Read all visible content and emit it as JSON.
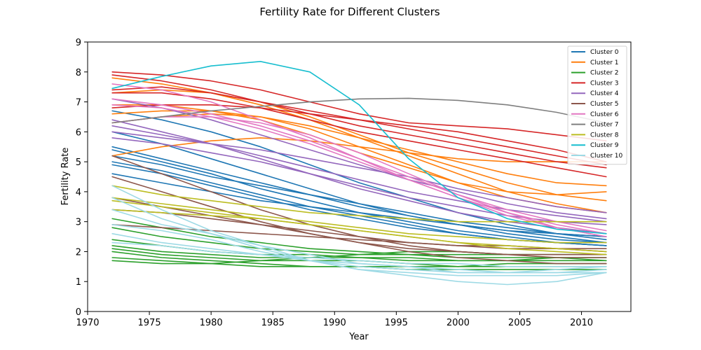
{
  "chart_data": {
    "type": "line",
    "title": "Fertility Rate for Different Clusters",
    "xlabel": "Year",
    "ylabel": "Fertility Rate",
    "xlim": [
      1970,
      2014
    ],
    "ylim": [
      0,
      9
    ],
    "xticks": [
      1970,
      1975,
      1980,
      1985,
      1990,
      1995,
      2000,
      2005,
      2010
    ],
    "yticks": [
      0,
      1,
      2,
      3,
      4,
      5,
      6,
      7,
      8,
      9
    ],
    "grid": false,
    "legend_position": "top-right",
    "x": [
      1972,
      1976,
      1980,
      1984,
      1988,
      1992,
      1996,
      2000,
      2004,
      2008,
      2012
    ],
    "series": [
      {
        "name": "Cluster 0",
        "color": "#1f77b4",
        "lines": [
          [
            6.7,
            6.4,
            6.0,
            5.5,
            4.9,
            4.3,
            3.8,
            3.3,
            2.9,
            2.6,
            2.4
          ],
          [
            5.5,
            5.1,
            4.7,
            4.3,
            3.9,
            3.5,
            3.2,
            2.9,
            2.7,
            2.5,
            2.3
          ],
          [
            5.2,
            4.9,
            4.5,
            4.2,
            3.9,
            3.6,
            3.3,
            3.0,
            2.8,
            2.6,
            2.5
          ],
          [
            4.6,
            4.3,
            4.0,
            3.7,
            3.5,
            3.3,
            3.1,
            2.9,
            2.7,
            2.6,
            2.5
          ],
          [
            5.4,
            5.0,
            4.6,
            4.1,
            3.7,
            3.3,
            3.0,
            2.7,
            2.5,
            2.3,
            2.2
          ],
          [
            5.0,
            4.7,
            4.3,
            3.9,
            3.5,
            3.2,
            2.9,
            2.6,
            2.4,
            2.3,
            2.2
          ],
          [
            6.0,
            5.6,
            5.1,
            4.6,
            4.1,
            3.6,
            3.2,
            2.9,
            2.6,
            2.4,
            2.3
          ],
          [
            4.9,
            4.6,
            4.2,
            3.8,
            3.4,
            3.1,
            2.8,
            2.6,
            2.4,
            2.3,
            2.2
          ]
        ]
      },
      {
        "name": "Cluster 1",
        "color": "#ff7f0e",
        "lines": [
          [
            7.8,
            7.6,
            7.3,
            6.9,
            6.4,
            5.8,
            5.2,
            4.6,
            4.0,
            3.6,
            3.3
          ],
          [
            7.3,
            7.4,
            7.3,
            7.0,
            6.5,
            5.9,
            5.3,
            4.8,
            4.3,
            3.9,
            3.7
          ],
          [
            6.3,
            6.5,
            6.6,
            6.5,
            6.2,
            5.8,
            5.4,
            5.0,
            4.6,
            4.3,
            4.2
          ],
          [
            5.2,
            5.5,
            5.7,
            5.8,
            5.7,
            5.5,
            5.3,
            5.1,
            5.0,
            5.0,
            5.0
          ],
          [
            6.9,
            6.9,
            6.7,
            6.4,
            5.9,
            5.3,
            4.8,
            4.3,
            4.0,
            3.9,
            4.0
          ],
          [
            6.6,
            6.7,
            6.7,
            6.5,
            6.1,
            5.5,
            4.9,
            4.3,
            3.8,
            3.5,
            3.3
          ]
        ]
      },
      {
        "name": "Cluster 2",
        "color": "#2ca02c",
        "lines": [
          [
            2.1,
            1.9,
            1.8,
            1.7,
            1.7,
            1.7,
            1.6,
            1.5,
            1.5,
            1.5,
            1.5
          ],
          [
            1.7,
            1.6,
            1.6,
            1.7,
            1.8,
            1.9,
            2.0,
            2.0,
            1.9,
            1.9,
            1.9
          ],
          [
            2.4,
            2.2,
            2.0,
            1.9,
            1.9,
            1.8,
            1.8,
            1.7,
            1.7,
            1.7,
            1.7
          ],
          [
            2.0,
            1.8,
            1.7,
            1.6,
            1.5,
            1.5,
            1.4,
            1.4,
            1.4,
            1.4,
            1.4
          ],
          [
            3.1,
            2.8,
            2.5,
            2.3,
            2.1,
            2.0,
            1.9,
            1.9,
            1.9,
            1.9,
            1.9
          ],
          [
            1.8,
            1.7,
            1.6,
            1.5,
            1.5,
            1.5,
            1.5,
            1.5,
            1.6,
            1.6,
            1.6
          ],
          [
            2.2,
            2.0,
            1.9,
            1.8,
            1.8,
            1.8,
            1.7,
            1.7,
            1.7,
            1.8,
            1.8
          ],
          [
            2.8,
            2.5,
            2.3,
            2.1,
            2.0,
            1.9,
            1.9,
            1.8,
            1.8,
            1.8,
            1.7
          ]
        ]
      },
      {
        "name": "Cluster 3",
        "color": "#d62728",
        "lines": [
          [
            8.0,
            7.9,
            7.7,
            7.4,
            7.0,
            6.6,
            6.3,
            6.2,
            6.1,
            5.9,
            5.7
          ],
          [
            7.4,
            7.5,
            7.3,
            7.0,
            6.6,
            6.2,
            5.9,
            5.6,
            5.3,
            5.0,
            4.8
          ],
          [
            6.8,
            6.9,
            6.9,
            6.8,
            6.6,
            6.4,
            6.2,
            6.0,
            5.7,
            5.4,
            5.0
          ],
          [
            7.9,
            7.7,
            7.4,
            7.0,
            6.7,
            6.4,
            6.1,
            5.8,
            5.5,
            5.2,
            4.9
          ],
          [
            7.3,
            7.3,
            7.1,
            6.8,
            6.4,
            6.0,
            5.7,
            5.4,
            5.1,
            4.8,
            4.5
          ]
        ]
      },
      {
        "name": "Cluster 4",
        "color": "#9467bd",
        "lines": [
          [
            6.2,
            5.9,
            5.6,
            5.2,
            4.8,
            4.4,
            4.0,
            3.7,
            3.4,
            3.2,
            3.0
          ],
          [
            5.8,
            5.6,
            5.3,
            5.0,
            4.6,
            4.2,
            3.8,
            3.5,
            3.2,
            3.0,
            2.9
          ],
          [
            7.1,
            6.8,
            6.4,
            5.9,
            5.4,
            4.9,
            4.4,
            4.0,
            3.6,
            3.3,
            3.1
          ],
          [
            6.0,
            5.8,
            5.6,
            5.4,
            5.1,
            4.8,
            4.5,
            4.1,
            3.8,
            3.5,
            3.3
          ],
          [
            6.4,
            6.0,
            5.6,
            5.1,
            4.6,
            4.1,
            3.7,
            3.3,
            3.0,
            2.8,
            2.6
          ]
        ]
      },
      {
        "name": "Cluster 5",
        "color": "#8c564b",
        "lines": [
          [
            5.2,
            4.6,
            4.0,
            3.4,
            2.9,
            2.5,
            2.2,
            2.0,
            1.9,
            1.8,
            1.8
          ],
          [
            4.5,
            4.0,
            3.5,
            3.0,
            2.6,
            2.3,
            2.1,
            2.0,
            1.9,
            1.9,
            1.9
          ],
          [
            3.4,
            3.3,
            3.1,
            2.9,
            2.7,
            2.5,
            2.3,
            2.2,
            2.1,
            2.1,
            2.0
          ],
          [
            2.9,
            2.8,
            2.7,
            2.6,
            2.5,
            2.4,
            2.3,
            2.2,
            2.2,
            2.1,
            2.1
          ],
          [
            3.8,
            3.5,
            3.2,
            2.9,
            2.6,
            2.3,
            2.0,
            1.8,
            1.7,
            1.6,
            1.6
          ]
        ]
      },
      {
        "name": "Cluster 6",
        "color": "#e377c2",
        "lines": [
          [
            7.6,
            7.4,
            7.0,
            6.4,
            5.8,
            5.1,
            4.4,
            3.8,
            3.2,
            2.8,
            2.5
          ],
          [
            6.9,
            6.8,
            6.5,
            6.1,
            5.6,
            5.0,
            4.4,
            3.8,
            3.3,
            2.9,
            2.6
          ],
          [
            6.3,
            6.5,
            6.5,
            6.3,
            5.9,
            5.3,
            4.6,
            3.9,
            3.3,
            2.8,
            2.5
          ],
          [
            7.1,
            6.9,
            6.6,
            6.2,
            5.7,
            5.1,
            4.5,
            3.9,
            3.4,
            3.0,
            2.7
          ]
        ]
      },
      {
        "name": "Cluster 7",
        "color": "#7f7f7f",
        "lines": [
          [
            6.3,
            6.5,
            6.7,
            6.85,
            7.0,
            7.1,
            7.12,
            7.05,
            6.9,
            6.65,
            6.3
          ]
        ]
      },
      {
        "name": "Cluster 8",
        "color": "#bcbd22",
        "lines": [
          [
            4.2,
            3.9,
            3.7,
            3.5,
            3.3,
            3.2,
            3.1,
            3.0,
            3.0,
            3.0,
            3.0
          ],
          [
            3.8,
            3.6,
            3.4,
            3.2,
            3.0,
            2.8,
            2.6,
            2.5,
            2.4,
            2.3,
            2.3
          ],
          [
            3.4,
            3.3,
            3.2,
            3.1,
            2.9,
            2.7,
            2.5,
            2.3,
            2.2,
            2.1,
            2.0
          ],
          [
            3.7,
            3.5,
            3.3,
            3.1,
            2.9,
            2.7,
            2.5,
            2.3,
            2.1,
            2.0,
            1.9
          ]
        ]
      },
      {
        "name": "Cluster 9",
        "color": "#17becf",
        "lines": [
          [
            7.45,
            7.85,
            8.2,
            8.35,
            8.0,
            6.9,
            5.1,
            3.8,
            3.1,
            2.75,
            2.6
          ]
        ]
      },
      {
        "name": "Cluster 10",
        "color": "#9edae5",
        "lines": [
          [
            4.2,
            3.4,
            2.7,
            2.2,
            1.7,
            1.4,
            1.2,
            1.0,
            0.9,
            1.0,
            1.3
          ],
          [
            3.4,
            2.9,
            2.6,
            2.2,
            1.9,
            1.6,
            1.5,
            1.3,
            1.3,
            1.3,
            1.4
          ],
          [
            2.9,
            2.7,
            2.4,
            2.0,
            1.7,
            1.6,
            1.5,
            1.4,
            1.3,
            1.4,
            1.5
          ],
          [
            2.6,
            2.3,
            2.1,
            1.9,
            1.7,
            1.5,
            1.4,
            1.3,
            1.3,
            1.3,
            1.3
          ],
          [
            3.8,
            3.1,
            2.6,
            2.1,
            1.7,
            1.4,
            1.3,
            1.2,
            1.2,
            1.2,
            1.3
          ],
          [
            2.3,
            2.2,
            2.0,
            1.9,
            1.8,
            1.7,
            1.6,
            1.6,
            1.5,
            1.5,
            1.5
          ]
        ]
      }
    ]
  }
}
